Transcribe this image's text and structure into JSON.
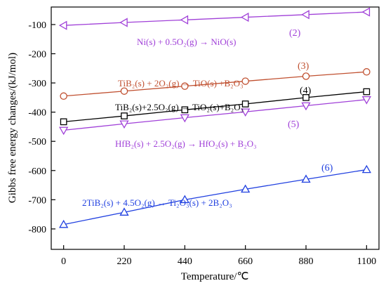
{
  "chart_data": {
    "type": "line",
    "title": "",
    "xlabel": "Temperature/℃",
    "ylabel": "Gibbs free energy changes/(kJ/mol)",
    "xlim": [
      -45,
      1145
    ],
    "ylim": [
      -870,
      -40
    ],
    "xticks": [
      0,
      220,
      440,
      660,
      880,
      1100
    ],
    "yticks": [
      -100,
      -200,
      -300,
      -400,
      -500,
      -600,
      -700,
      -800
    ],
    "x": [
      0,
      220,
      440,
      660,
      880,
      1100
    ],
    "grid": false,
    "legend": "none",
    "series": [
      {
        "color": "#a040d8",
        "marker": "triangle-left",
        "values": [
          -103,
          -93,
          -84,
          -75,
          -66,
          -57
        ],
        "equation": "Ni(s) + 0.5O₂(g) → NiO(s)",
        "label": "(2)"
      },
      {
        "color": "#c05030",
        "marker": "circle",
        "values": [
          -345,
          -328,
          -311,
          -294,
          -277,
          -262
        ],
        "equation": "TiB₂(s) + 2O₂(g) → TiO(s) +B₂O₃",
        "label": "(3)"
      },
      {
        "color": "#000000",
        "marker": "square",
        "values": [
          -433,
          -413,
          -392,
          -372,
          -350,
          -330
        ],
        "equation": "TiB₂(s)+2.5O₂(g) → TiO₂(s)+B₂O₃",
        "label": "(4)"
      },
      {
        "color": "#a040d8",
        "marker": "triangle-down",
        "values": [
          -462,
          -440,
          -419,
          -399,
          -378,
          -357
        ],
        "equation": "HfB₂(s) + 2.5O₂(g) → HfO₂(s) + B₂O₃",
        "label": "(5)"
      },
      {
        "color": "#2040e0",
        "marker": "triangle-up",
        "values": [
          -785,
          -743,
          -700,
          -664,
          -630,
          -597
        ],
        "equation": "2TiB₂(s) + 4.5O₂(g) → Ti₂O₃(s) + 2B₂O₃",
        "label": "(6)"
      }
    ]
  }
}
